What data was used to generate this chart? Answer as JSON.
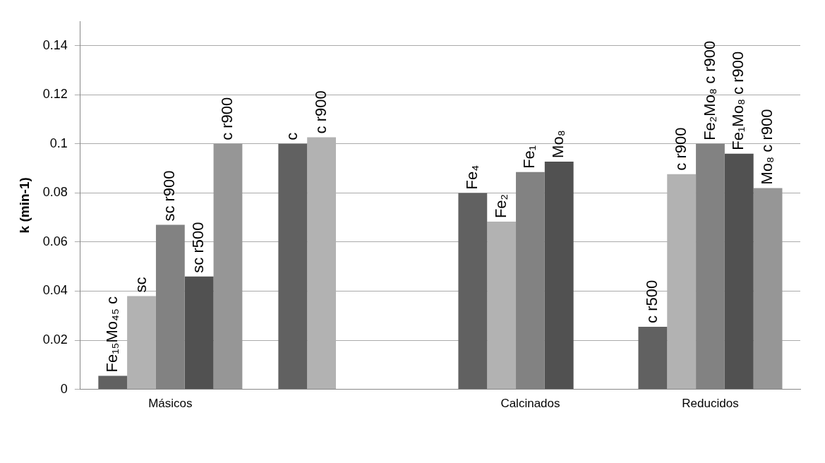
{
  "chart_data": {
    "type": "bar",
    "ylabel": "k (min-1)",
    "categories": [
      "Másicos",
      null,
      "Calcinados",
      "Reducidos"
    ],
    "ylim": [
      0,
      0.15
    ],
    "yticks": [
      0,
      0.02,
      0.04,
      0.06,
      0.08,
      0.1,
      0.12,
      0.14
    ],
    "grid": "y",
    "legend": false,
    "series": [
      {
        "color": "#616161",
        "values": [
          0.0055,
          0.1,
          0.08,
          0.0255
        ],
        "value_labels": [
          "Fe₁₅Mo₄₅ c",
          "c",
          "Fe₄",
          "c r500"
        ]
      },
      {
        "color": "#b2b2b2",
        "values": [
          0.038,
          0.1027,
          0.0683,
          0.0877
        ],
        "value_labels": [
          "sc",
          "c r900",
          "Fe₂",
          "c r900"
        ]
      },
      {
        "color": "#828282",
        "values": [
          0.067,
          null,
          0.0885,
          0.1
        ],
        "value_labels": [
          "sc r900",
          null,
          "Fe₁",
          "Fe₂Mo₈ c r900"
        ]
      },
      {
        "color": "#515151",
        "values": [
          0.046,
          null,
          0.0928,
          0.096
        ],
        "value_labels": [
          "sc r500",
          null,
          "Mo₈",
          "Fe₁Mo₈ c r900"
        ]
      },
      {
        "color": "#969696",
        "values": [
          0.1,
          null,
          null,
          0.082
        ],
        "value_labels": [
          "c r900",
          null,
          null,
          "Mo₈ c r900"
        ]
      }
    ]
  }
}
